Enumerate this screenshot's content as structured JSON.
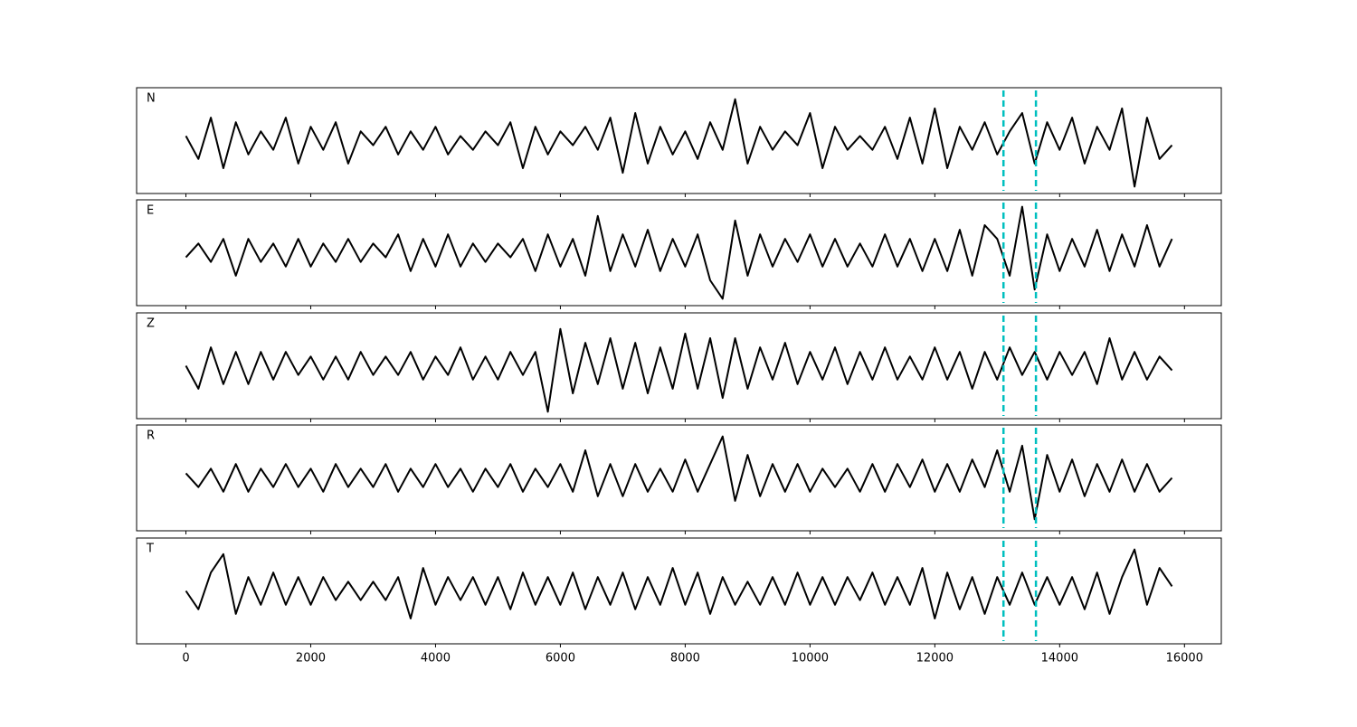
{
  "chart_data": {
    "type": "line",
    "x": [
      0,
      200,
      400,
      600,
      800,
      1000,
      1200,
      1400,
      1600,
      1800,
      2000,
      2200,
      2400,
      2600,
      2800,
      3000,
      3200,
      3400,
      3600,
      3800,
      4000,
      4200,
      4400,
      4600,
      4800,
      5000,
      5200,
      5400,
      5600,
      5800,
      6000,
      6200,
      6400,
      6600,
      6800,
      7000,
      7200,
      7400,
      7600,
      7800,
      8000,
      8200,
      8400,
      8600,
      8800,
      9000,
      9200,
      9400,
      9600,
      9800,
      10000,
      10200,
      10400,
      10600,
      10800,
      11000,
      11200,
      11400,
      11600,
      11800,
      12000,
      12200,
      12400,
      12600,
      12800,
      13000,
      13200,
      13400,
      13600,
      13800,
      14000,
      14200,
      14400,
      14600,
      14800,
      15000,
      15200,
      15400,
      15600,
      15800
    ],
    "series": [
      {
        "name": "N",
        "color": "#000000",
        "values": [
          0.1,
          -0.4,
          0.5,
          -0.6,
          0.4,
          -0.3,
          0.2,
          -0.2,
          0.5,
          -0.5,
          0.3,
          -0.2,
          0.4,
          -0.5,
          0.2,
          -0.1,
          0.3,
          -0.3,
          0.2,
          -0.2,
          0.3,
          -0.3,
          0.1,
          -0.2,
          0.2,
          -0.1,
          0.4,
          -0.6,
          0.3,
          -0.3,
          0.2,
          -0.1,
          0.3,
          -0.2,
          0.5,
          -0.7,
          0.6,
          -0.5,
          0.3,
          -0.3,
          0.2,
          -0.4,
          0.4,
          -0.2,
          0.9,
          -0.5,
          0.3,
          -0.2,
          0.2,
          -0.1,
          0.6,
          -0.6,
          0.3,
          -0.2,
          0.1,
          -0.2,
          0.3,
          -0.4,
          0.5,
          -0.5,
          0.7,
          -0.6,
          0.3,
          -0.2,
          0.4,
          -0.3,
          0.2,
          0.6,
          -0.5,
          0.4,
          -0.2,
          0.5,
          -0.5,
          0.3,
          -0.2,
          0.7,
          -1.0,
          0.5,
          -0.4,
          -0.1
        ]
      },
      {
        "name": "E",
        "color": "#000000",
        "values": [
          -0.1,
          0.2,
          -0.2,
          0.3,
          -0.5,
          0.3,
          -0.2,
          0.2,
          -0.3,
          0.3,
          -0.3,
          0.2,
          -0.2,
          0.3,
          -0.2,
          0.2,
          -0.1,
          0.4,
          -0.4,
          0.3,
          -0.3,
          0.4,
          -0.3,
          0.2,
          -0.2,
          0.2,
          -0.1,
          0.3,
          -0.4,
          0.4,
          -0.3,
          0.3,
          -0.5,
          0.8,
          -0.4,
          0.4,
          -0.3,
          0.5,
          -0.4,
          0.3,
          -0.3,
          0.4,
          -0.6,
          -1.0,
          0.7,
          -0.5,
          0.4,
          -0.3,
          0.3,
          -0.2,
          0.4,
          -0.3,
          0.3,
          -0.3,
          0.2,
          -0.3,
          0.4,
          -0.3,
          0.3,
          -0.4,
          0.3,
          -0.4,
          0.5,
          -0.5,
          0.6,
          0.3,
          -0.5,
          1.0,
          -0.8,
          0.4,
          -0.4,
          0.3,
          -0.3,
          0.5,
          -0.4,
          0.4,
          -0.3,
          0.6,
          -0.3,
          0.3
        ]
      },
      {
        "name": "Z",
        "color": "#000000",
        "values": [
          0.0,
          -0.5,
          0.4,
          -0.4,
          0.3,
          -0.4,
          0.3,
          -0.3,
          0.3,
          -0.2,
          0.2,
          -0.3,
          0.2,
          -0.3,
          0.3,
          -0.2,
          0.2,
          -0.2,
          0.3,
          -0.3,
          0.2,
          -0.2,
          0.4,
          -0.3,
          0.2,
          -0.3,
          0.3,
          -0.2,
          0.3,
          -1.0,
          0.8,
          -0.6,
          0.5,
          -0.4,
          0.6,
          -0.5,
          0.5,
          -0.6,
          0.4,
          -0.5,
          0.7,
          -0.5,
          0.6,
          -0.7,
          0.6,
          -0.5,
          0.4,
          -0.3,
          0.5,
          -0.4,
          0.3,
          -0.3,
          0.4,
          -0.4,
          0.3,
          -0.3,
          0.4,
          -0.3,
          0.2,
          -0.3,
          0.4,
          -0.3,
          0.3,
          -0.5,
          0.3,
          -0.3,
          0.4,
          -0.2,
          0.3,
          -0.3,
          0.3,
          -0.2,
          0.3,
          -0.4,
          0.6,
          -0.3,
          0.3,
          -0.3,
          0.2,
          -0.1
        ]
      },
      {
        "name": "R",
        "color": "#000000",
        "values": [
          0.1,
          -0.2,
          0.2,
          -0.3,
          0.3,
          -0.3,
          0.2,
          -0.2,
          0.3,
          -0.2,
          0.2,
          -0.3,
          0.3,
          -0.2,
          0.2,
          -0.2,
          0.3,
          -0.3,
          0.2,
          -0.2,
          0.3,
          -0.2,
          0.2,
          -0.3,
          0.2,
          -0.2,
          0.3,
          -0.3,
          0.2,
          -0.2,
          0.3,
          -0.3,
          0.6,
          -0.4,
          0.3,
          -0.4,
          0.3,
          -0.3,
          0.2,
          -0.3,
          0.4,
          -0.3,
          0.3,
          0.9,
          -0.5,
          0.5,
          -0.4,
          0.3,
          -0.3,
          0.3,
          -0.3,
          0.2,
          -0.2,
          0.2,
          -0.3,
          0.3,
          -0.3,
          0.3,
          -0.2,
          0.4,
          -0.3,
          0.3,
          -0.3,
          0.4,
          -0.2,
          0.6,
          -0.3,
          0.7,
          -0.9,
          0.5,
          -0.3,
          0.4,
          -0.4,
          0.3,
          -0.3,
          0.4,
          -0.3,
          0.3,
          -0.3,
          0.0
        ]
      },
      {
        "name": "T",
        "color": "#000000",
        "values": [
          0.0,
          -0.4,
          0.4,
          0.8,
          -0.5,
          0.3,
          -0.3,
          0.4,
          -0.3,
          0.3,
          -0.3,
          0.3,
          -0.2,
          0.2,
          -0.2,
          0.2,
          -0.2,
          0.3,
          -0.6,
          0.5,
          -0.3,
          0.3,
          -0.2,
          0.3,
          -0.3,
          0.3,
          -0.4,
          0.4,
          -0.3,
          0.3,
          -0.3,
          0.4,
          -0.4,
          0.3,
          -0.3,
          0.4,
          -0.4,
          0.3,
          -0.3,
          0.5,
          -0.3,
          0.4,
          -0.5,
          0.3,
          -0.3,
          0.2,
          -0.3,
          0.3,
          -0.3,
          0.4,
          -0.3,
          0.3,
          -0.3,
          0.3,
          -0.2,
          0.4,
          -0.3,
          0.3,
          -0.3,
          0.5,
          -0.6,
          0.4,
          -0.4,
          0.3,
          -0.5,
          0.3,
          -0.3,
          0.4,
          -0.3,
          0.3,
          -0.3,
          0.3,
          -0.4,
          0.4,
          -0.5,
          0.3,
          0.9,
          -0.3,
          0.5,
          0.1
        ]
      }
    ],
    "vlines": [
      13100,
      13620
    ],
    "vline_color": "#00bfbf",
    "xlim": [
      -790,
      16590
    ],
    "xticks": [
      0,
      2000,
      4000,
      6000,
      8000,
      10000,
      12000,
      14000,
      16000
    ],
    "ylim": [
      -1.15,
      1.15
    ]
  }
}
